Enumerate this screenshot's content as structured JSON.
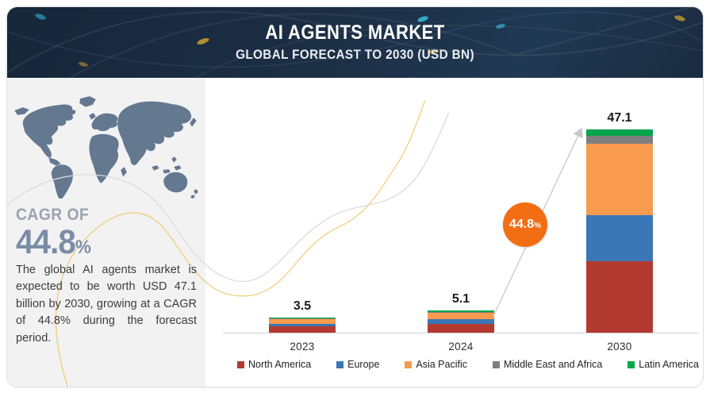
{
  "header": {
    "title": "AI AGENTS MARKET",
    "subtitle": "GLOBAL FORECAST TO 2030 (USD BN)"
  },
  "sidebar": {
    "cagr_label": "CAGR OF",
    "cagr_value": "44.8",
    "cagr_unit": "%",
    "description": "The global AI agents market is expected to be worth USD 47.1 billion by 2030, growing at a CAGR of 44.8% during the forecast period."
  },
  "callout": {
    "value": "44.8",
    "unit": "%",
    "color": "#f36d13"
  },
  "colors": {
    "header_bg": "#1c2e44",
    "side_panel_bg": "#f2f2f3",
    "map_fill": "#64788f",
    "cagr_text": "#7b8da6",
    "curve_yellow": "#eec35f",
    "curve_gray": "#dcdcdc",
    "axis_line": "#cfcfcf"
  },
  "chart_data": {
    "type": "bar",
    "subtype": "stacked",
    "categories": [
      "2023",
      "2024",
      "2030"
    ],
    "totals": [
      3.5,
      5.1,
      47.1
    ],
    "totals_display": [
      "3.5",
      "5.1",
      "47.1"
    ],
    "series": [
      {
        "name": "North America",
        "color": "#b23a30",
        "values": [
          1.5,
          2.1,
          16.5
        ]
      },
      {
        "name": "Europe",
        "color": "#3b76b7",
        "values": [
          0.6,
          1.0,
          10.7
        ]
      },
      {
        "name": "Asia Pacific",
        "color": "#f89b4e",
        "values": [
          0.95,
          1.5,
          16.6
        ]
      },
      {
        "name": "Middle East and Africa",
        "color": "#7f7f7f",
        "values": [
          0.2,
          0.25,
          1.8
        ]
      },
      {
        "name": "Latin America",
        "color": "#04a64b",
        "values": [
          0.25,
          0.25,
          1.5
        ]
      }
    ],
    "ylim": [
      0,
      47.1
    ],
    "units": "USD BN",
    "grid": false,
    "legend_position": "bottom",
    "annotation": "44.8% CAGR growth arrow from 2024 to 2030"
  }
}
